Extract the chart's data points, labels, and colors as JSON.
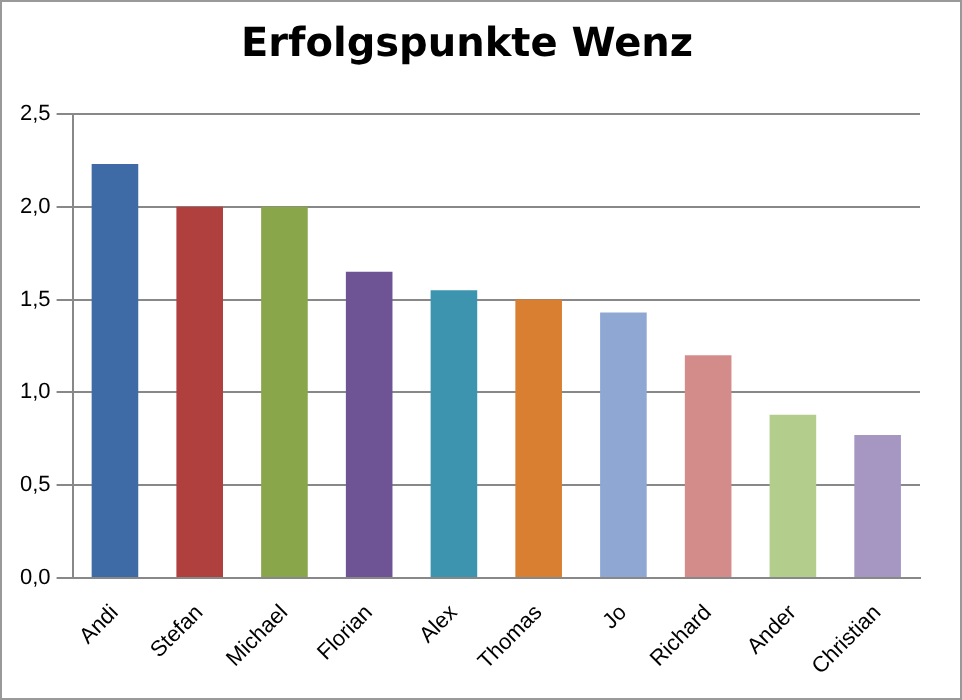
{
  "chart_data": {
    "type": "bar",
    "title": "Erfolgspunkte Wenz",
    "categories": [
      "Andi",
      "Stefan",
      "Michael",
      "Florian",
      "Alex",
      "Thomas",
      "Jo",
      "Richard",
      "Ander",
      "Christian"
    ],
    "values": [
      2.23,
      2.0,
      2.0,
      1.65,
      1.55,
      1.5,
      1.43,
      1.2,
      0.88,
      0.77
    ],
    "colors": [
      "#3e6ba6",
      "#b0403d",
      "#89a64a",
      "#6f5495",
      "#3d94ae",
      "#d97f32",
      "#8fa7d3",
      "#d48c8a",
      "#b3cd8d",
      "#a597c2"
    ],
    "ylim": [
      0,
      2.5
    ],
    "yticks": [
      {
        "value": 0,
        "label": "0,0"
      },
      {
        "value": 0.5,
        "label": "0,5"
      },
      {
        "value": 1,
        "label": "1,0"
      },
      {
        "value": 1.5,
        "label": "1,5"
      },
      {
        "value": 2,
        "label": "2,0"
      },
      {
        "value": 2.5,
        "label": "2,5"
      }
    ],
    "grid": "y",
    "legend": false
  }
}
